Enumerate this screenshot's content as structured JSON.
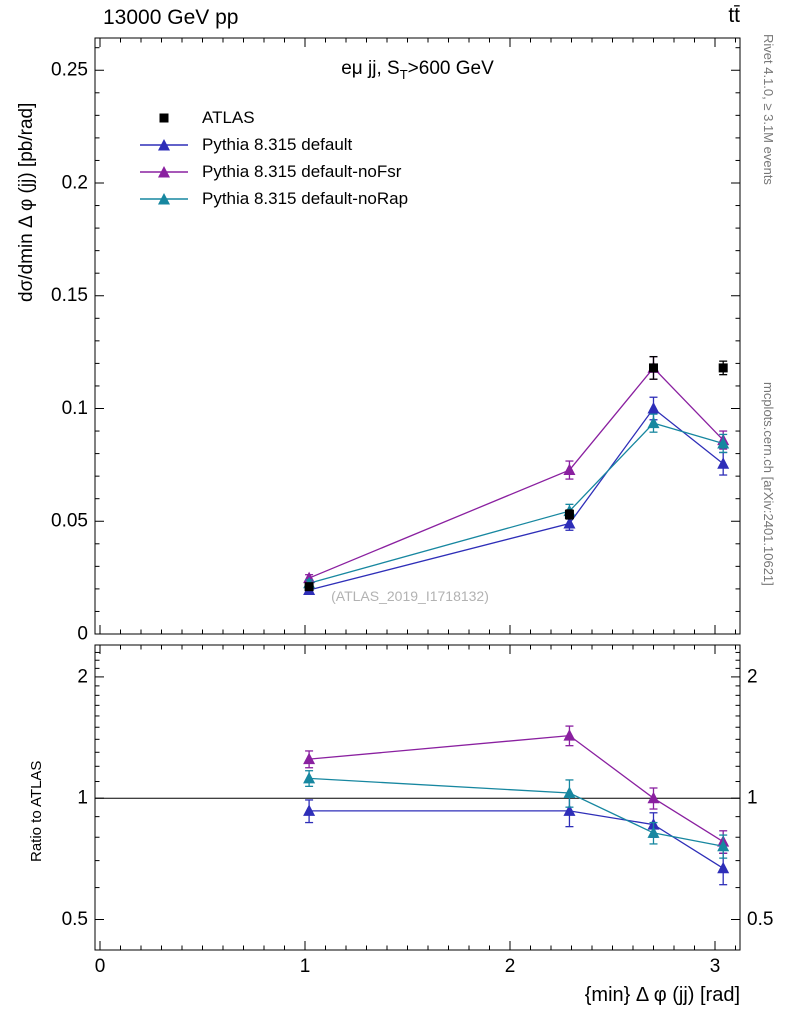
{
  "header": {
    "left": "13000 GeV pp",
    "right": "tt̄"
  },
  "captions": {
    "right_top": "Rivet 4.1.0, ≥ 3.1M events",
    "right_bottom": "mcplots.cern.ch [arXiv:2401.10621]",
    "watermark": "(ATLAS_2019_I1718132)"
  },
  "chart_data": {
    "type": "line",
    "title": "eμ jj, S_T>600 GeV",
    "subtitle_parts": {
      "pre": "eμ jj, S",
      "sub": "T",
      "post": ">600 GeV"
    },
    "xlabel": "{min} Δ φ (jj) [rad]",
    "x": [
      1.02,
      2.29,
      2.7,
      3.04
    ],
    "axes": {
      "x": {
        "lim": [
          -0.0244,
          3.122
        ],
        "major": [
          0,
          1,
          2,
          3
        ],
        "labels": [
          "0",
          "1",
          "2",
          "3"
        ],
        "minor_step": 0.1
      },
      "main_y": {
        "lim": [
          0,
          0.2643
        ],
        "major": [
          0,
          0.05,
          0.1,
          0.15,
          0.2,
          0.25
        ],
        "labels": [
          "0",
          "0.05",
          "0.1",
          "0.15",
          "0.2",
          "0.25"
        ],
        "minor_step": 0.01
      },
      "ratio_y": {
        "lim": [
          0.42,
          2.4
        ],
        "scale": "log",
        "major": [
          0.5,
          1,
          2
        ],
        "labels": [
          "0.5",
          "1",
          "2"
        ],
        "minor": [
          0.6,
          0.7,
          0.8,
          0.9,
          1.1,
          1.2,
          1.3,
          1.4,
          1.5,
          1.6,
          1.7,
          1.8,
          1.9,
          2.1,
          2.2,
          2.3
        ]
      }
    },
    "main": {
      "ylabel": "dσ/dmin Δ φ (jj) [pb/rad]",
      "series": [
        {
          "name": "ATLAS",
          "color": "#000000",
          "marker": "square",
          "line": false,
          "values": [
            0.021,
            0.053,
            0.118,
            0.118
          ],
          "errors": [
            0.001,
            0.002,
            0.005,
            0.003
          ]
        },
        {
          "name": "Pythia 8.315 default",
          "color": "#2e2eb8",
          "marker": "triangle",
          "line": true,
          "values": [
            0.0195,
            0.049,
            0.1,
            0.0755
          ],
          "errors": [
            0.0015,
            0.003,
            0.005,
            0.005
          ]
        },
        {
          "name": "Pythia 8.315 default-noFsr",
          "color": "#8a20a0",
          "marker": "triangle",
          "line": true,
          "values": [
            0.0248,
            0.0727,
            0.118,
            0.086
          ],
          "errors": [
            0.0015,
            0.004,
            0.005,
            0.004
          ]
        },
        {
          "name": "Pythia 8.315 default-noRap",
          "color": "#1787a0",
          "marker": "triangle",
          "line": true,
          "values": [
            0.0225,
            0.0545,
            0.0935,
            0.0845
          ],
          "errors": [
            0.0015,
            0.003,
            0.004,
            0.004
          ]
        }
      ]
    },
    "ratio": {
      "ylabel": "Ratio to ATLAS",
      "baseline": 1,
      "series": [
        {
          "name": "Pythia 8.315 default",
          "color": "#2e2eb8",
          "marker": "triangle",
          "values": [
            0.93,
            0.93,
            0.86,
            0.67
          ],
          "errors": [
            0.06,
            0.08,
            0.06,
            0.06
          ]
        },
        {
          "name": "Pythia 8.315 default-noFsr",
          "color": "#8a20a0",
          "marker": "triangle",
          "values": [
            1.25,
            1.43,
            1.0,
            0.78
          ],
          "errors": [
            0.06,
            0.08,
            0.06,
            0.05
          ]
        },
        {
          "name": "Pythia 8.315 default-noRap",
          "color": "#1787a0",
          "marker": "triangle",
          "values": [
            1.12,
            1.03,
            0.82,
            0.76
          ],
          "errors": [
            0.05,
            0.08,
            0.05,
            0.05
          ]
        }
      ]
    }
  }
}
